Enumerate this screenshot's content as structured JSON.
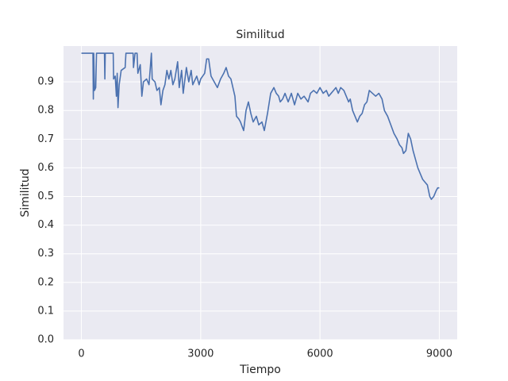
{
  "chart_data": {
    "type": "line",
    "title": "Similitud",
    "xlabel": "Tiempo",
    "ylabel": "Similitud",
    "color": "#4c72b0",
    "grid": true,
    "xlim": [
      -450,
      9450
    ],
    "ylim": [
      0,
      1.025
    ],
    "xticks": [
      0,
      3000,
      6000,
      9000
    ],
    "yticks": [
      {
        "value": 0,
        "label": "0.0"
      },
      0.1,
      0.2,
      0.3,
      0.4,
      0.5,
      0.6,
      0.7,
      0.8,
      0.9
    ],
    "x": [
      0,
      290,
      300,
      310,
      330,
      360,
      380,
      580,
      590,
      600,
      800,
      810,
      850,
      880,
      900,
      920,
      950,
      1000,
      1100,
      1120,
      1300,
      1310,
      1350,
      1400,
      1420,
      1480,
      1520,
      1560,
      1640,
      1700,
      1760,
      1780,
      1850,
      1900,
      1960,
      2000,
      2050,
      2100,
      2150,
      2200,
      2250,
      2300,
      2350,
      2420,
      2460,
      2520,
      2560,
      2640,
      2700,
      2760,
      2800,
      2900,
      2960,
      3000,
      3100,
      3150,
      3200,
      3260,
      3340,
      3420,
      3500,
      3580,
      3640,
      3700,
      3760,
      3860,
      3900,
      3960,
      4000,
      4080,
      4140,
      4200,
      4260,
      4320,
      4400,
      4460,
      4540,
      4600,
      4680,
      4760,
      4840,
      4900,
      4960,
      5000,
      5060,
      5120,
      5200,
      5280,
      5360,
      5440,
      5520,
      5600,
      5700,
      5760,
      5840,
      5920,
      6000,
      6080,
      6160,
      6220,
      6280,
      6340,
      6400,
      6460,
      6520,
      6600,
      6660,
      6720,
      6760,
      6820,
      6880,
      6940,
      7000,
      7060,
      7120,
      7180,
      7240,
      7320,
      7400,
      7480,
      7560,
      7620,
      7700,
      7780,
      7860,
      7940,
      8000,
      8060,
      8100,
      8160,
      8220,
      8280,
      8340,
      8400,
      8460,
      8520,
      8580,
      8640,
      8700,
      8760,
      8800,
      8860,
      8920,
      8960,
      9000
    ],
    "values": [
      1.0,
      1.0,
      0.84,
      1.0,
      0.87,
      0.88,
      1.0,
      1.0,
      0.91,
      1.0,
      1.0,
      0.91,
      0.92,
      0.85,
      0.93,
      0.81,
      0.89,
      0.94,
      0.95,
      1.0,
      1.0,
      0.95,
      1.0,
      1.0,
      0.93,
      0.96,
      0.85,
      0.9,
      0.91,
      0.89,
      1.0,
      0.91,
      0.9,
      0.87,
      0.88,
      0.82,
      0.87,
      0.89,
      0.94,
      0.91,
      0.94,
      0.89,
      0.91,
      0.97,
      0.88,
      0.94,
      0.86,
      0.95,
      0.9,
      0.94,
      0.89,
      0.92,
      0.89,
      0.91,
      0.93,
      0.98,
      0.98,
      0.92,
      0.9,
      0.88,
      0.91,
      0.93,
      0.95,
      0.92,
      0.91,
      0.85,
      0.78,
      0.77,
      0.76,
      0.73,
      0.8,
      0.83,
      0.79,
      0.76,
      0.78,
      0.75,
      0.76,
      0.73,
      0.79,
      0.86,
      0.88,
      0.86,
      0.85,
      0.83,
      0.84,
      0.86,
      0.83,
      0.86,
      0.82,
      0.86,
      0.84,
      0.85,
      0.83,
      0.86,
      0.87,
      0.86,
      0.88,
      0.86,
      0.87,
      0.85,
      0.86,
      0.87,
      0.88,
      0.86,
      0.88,
      0.87,
      0.85,
      0.83,
      0.84,
      0.8,
      0.78,
      0.76,
      0.78,
      0.79,
      0.82,
      0.83,
      0.87,
      0.86,
      0.85,
      0.86,
      0.84,
      0.8,
      0.78,
      0.75,
      0.72,
      0.7,
      0.68,
      0.67,
      0.65,
      0.66,
      0.72,
      0.7,
      0.66,
      0.63,
      0.6,
      0.58,
      0.56,
      0.55,
      0.54,
      0.5,
      0.49,
      0.5,
      0.52,
      0.53,
      0.53
    ]
  }
}
